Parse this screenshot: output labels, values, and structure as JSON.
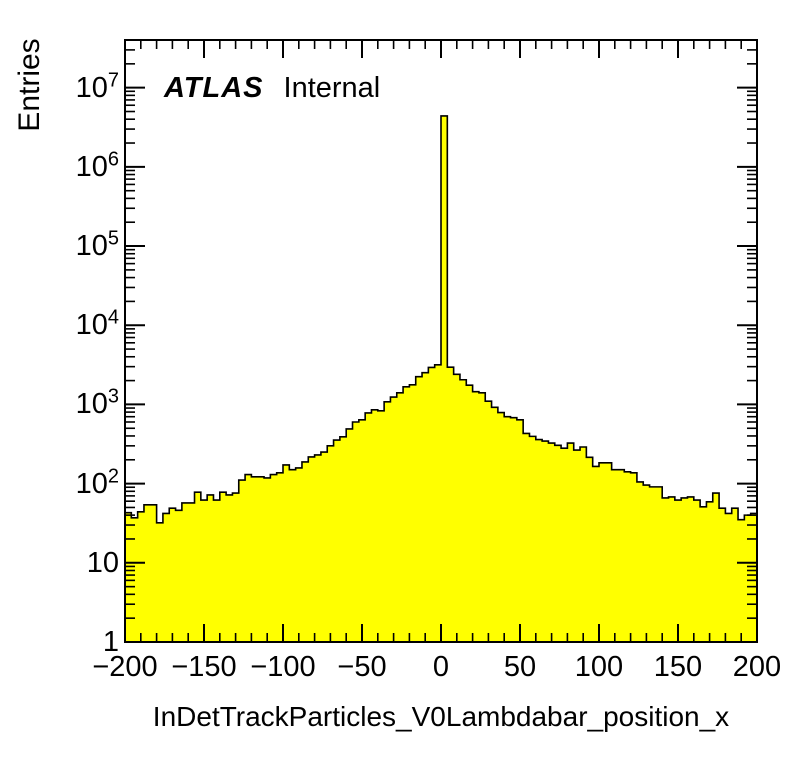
{
  "figure": {
    "background": "#ffffff",
    "frame_color": "#000000"
  },
  "annotations": {
    "experiment": "ATLAS",
    "status": "Internal"
  },
  "chart_data": {
    "type": "bar",
    "subtype": "step-histogram-filled",
    "title": "",
    "xlabel": "InDetTrackParticles_V0Lambdabar_position_x",
    "ylabel": "Entries",
    "y_scale": "log",
    "grid": false,
    "legend": "none",
    "fill_color": "#ffff00",
    "line_color": "#000000",
    "xlim": [
      -200,
      200
    ],
    "ylim": [
      1,
      40000000
    ],
    "bin_start": -200,
    "bin_width": 4,
    "n_bins": 100,
    "values": [
      43,
      37,
      44,
      54,
      54,
      32,
      42,
      49,
      46,
      57,
      57,
      78,
      62,
      72,
      62,
      78,
      72,
      76,
      111,
      130,
      122,
      122,
      118,
      130,
      137,
      172,
      150,
      158,
      188,
      217,
      230,
      250,
      300,
      355,
      390,
      490,
      600,
      640,
      780,
      855,
      830,
      1080,
      1240,
      1400,
      1670,
      1770,
      2240,
      2520,
      2930,
      3160,
      4400000,
      2950,
      2400,
      2050,
      1750,
      1450,
      1400,
      1100,
      920,
      790,
      700,
      680,
      640,
      430,
      395,
      360,
      345,
      325,
      305,
      280,
      325,
      265,
      290,
      215,
      165,
      183,
      183,
      150,
      150,
      141,
      137,
      105,
      96,
      91,
      91,
      66,
      68,
      62,
      66,
      68,
      62,
      51,
      59,
      76,
      49,
      42,
      49,
      35,
      40,
      42
    ],
    "x_tick_values": [
      -200,
      -150,
      -100,
      -50,
      0,
      50,
      100,
      150,
      200
    ],
    "x_tick_labels": [
      "−200",
      "−150",
      "−100",
      "−50",
      "0",
      "50",
      "100",
      "150",
      "200"
    ],
    "x_minor_tick_step": 10,
    "y_tick_exponents": [
      0,
      1,
      2,
      3,
      4,
      5,
      6,
      7
    ],
    "y_tick_labels": [
      "1",
      "10",
      "10^2",
      "10^3",
      "10^4",
      "10^5",
      "10^6",
      "10^7"
    ]
  }
}
